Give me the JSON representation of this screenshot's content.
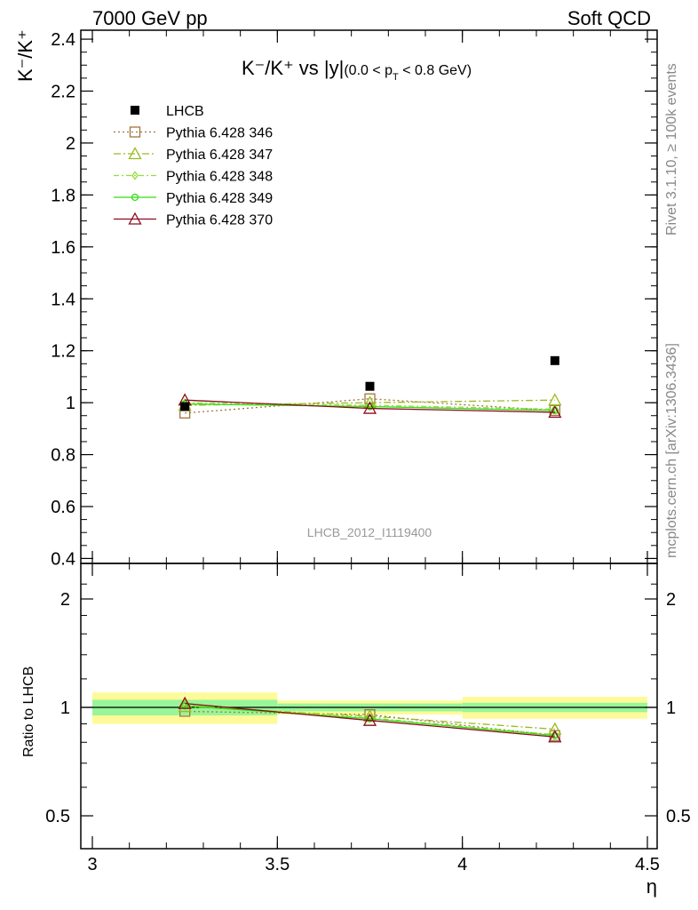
{
  "header": {
    "left": "7000 GeV pp",
    "right": "Soft QCD"
  },
  "side_text": {
    "rivet": "Rivet 3.1.10, ≥ 100k events",
    "site": "mcplots.cern.ch [arXiv:1306.3436]"
  },
  "chart_data": {
    "type": "line",
    "title": "K⁻/K⁺ vs |y|(0.0 < p_T < 0.8 GeV)",
    "title_main": "K⁻/K⁺ vs |y|",
    "title_sub": "(0.0 < p",
    "title_sub_T": "T",
    "title_sub_end": " < 0.8 GeV)",
    "ylabel_main": "K⁻/K⁺",
    "ylabel_ratio": "Ratio to LHCB",
    "xlabel": "η",
    "analysis_label": "LHCB_2012_I1119400",
    "xlim": [
      3.0,
      4.5
    ],
    "ylim_main": [
      0.4,
      2.43
    ],
    "ylim_ratio": [
      0.4,
      2.35
    ],
    "ratio_log_scale": true,
    "main_yticks": [
      0.4,
      0.6,
      0.8,
      1,
      1.2,
      1.4,
      1.6,
      1.8,
      2,
      2.2,
      2.4
    ],
    "main_ytick_labels": [
      "0.4",
      "0.6",
      "0.8",
      "1",
      "1.2",
      "1.4",
      "1.6",
      "1.8",
      "2",
      "2.2",
      "2.4"
    ],
    "ratio_yticks": [
      0.5,
      1,
      2
    ],
    "ratio_ytick_labels": [
      "0.5",
      "1",
      "2"
    ],
    "xticks": [
      3,
      3.5,
      4,
      4.5
    ],
    "xtick_labels": [
      "3",
      "3.5",
      "4",
      "4.5"
    ],
    "bins": [
      [
        3.0,
        3.5
      ],
      [
        3.5,
        4.0
      ],
      [
        4.0,
        4.5
      ]
    ],
    "x": [
      3.25,
      3.75,
      4.25
    ],
    "data": {
      "name": "LHCB",
      "values": [
        0.985,
        1.063,
        1.162
      ],
      "band_inner": [
        [
          0.95,
          1.05
        ],
        [
          0.975,
          1.025
        ],
        [
          0.97,
          1.03
        ]
      ],
      "band_outer": [
        [
          0.9,
          1.1
        ],
        [
          0.955,
          1.045
        ],
        [
          0.93,
          1.07
        ]
      ]
    },
    "series": [
      {
        "name": "Pythia 6.428 346",
        "color": "#a0763c",
        "dash": "2,3",
        "marker": "square",
        "values": [
          0.96,
          1.015,
          0.97
        ],
        "ratio": [
          0.975,
          0.955,
          0.835
        ]
      },
      {
        "name": "Pythia 6.428 347",
        "color": "#9aba1e",
        "dash": "8,3,2,3",
        "marker": "triangle",
        "values": [
          0.99,
          1.0,
          1.01
        ],
        "ratio": [
          1.005,
          0.945,
          0.87
        ]
      },
      {
        "name": "Pythia 6.428 348",
        "color": "#8ee03c",
        "dash": "6,3,2,3",
        "marker": "diamond",
        "values": [
          1.0,
          0.99,
          0.975
        ],
        "ratio": [
          1.015,
          0.935,
          0.84
        ]
      },
      {
        "name": "Pythia 6.428 349",
        "color": "#33dd11",
        "dash": "",
        "marker": "circle",
        "values": [
          0.995,
          0.985,
          0.97
        ],
        "ratio": [
          1.01,
          0.93,
          0.835
        ]
      },
      {
        "name": "Pythia 6.428 370",
        "color": "#8b0d1d",
        "dash": "",
        "marker": "triangle",
        "values": [
          1.01,
          0.978,
          0.963
        ],
        "ratio": [
          1.025,
          0.92,
          0.828
        ]
      }
    ],
    "colors": {
      "band_inner": "#99f599",
      "band_outer": "#fffa99",
      "data": "#000000"
    }
  }
}
